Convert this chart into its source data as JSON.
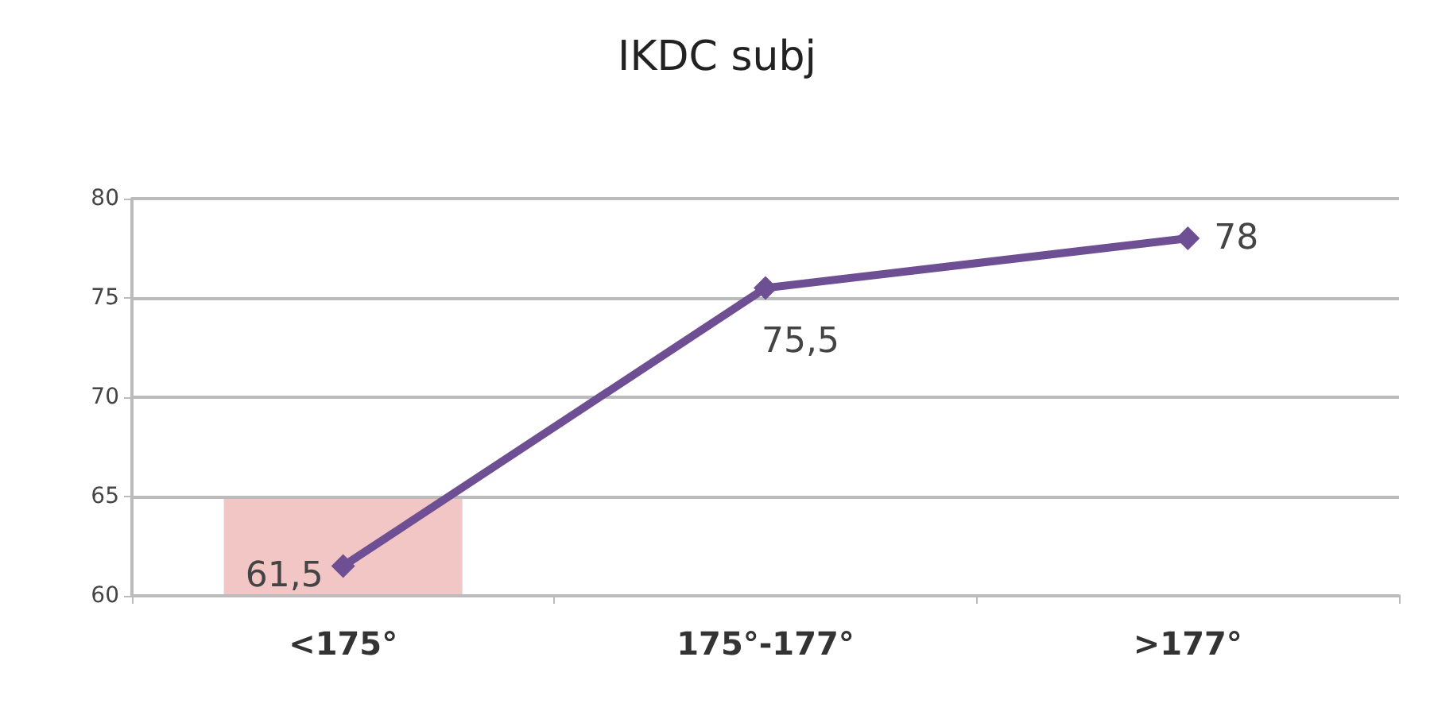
{
  "chart_data": {
    "type": "line",
    "title": "IKDC subj",
    "categories": [
      "<175°",
      "175°-177°",
      ">177°"
    ],
    "series": [
      {
        "color": "#6e4f93",
        "values": [
          61.5,
          75.5,
          78
        ],
        "value_labels": [
          "61,5",
          "75,5",
          "78"
        ]
      }
    ],
    "ylim": [
      60,
      80
    ],
    "yticks": [
      60,
      65,
      70,
      75,
      80
    ],
    "grid": "y",
    "marker": "diamond",
    "line_style": "solid",
    "bands": [
      {
        "axis": "y",
        "from": 60,
        "to": 65,
        "color": "#f3c6c6"
      }
    ]
  }
}
